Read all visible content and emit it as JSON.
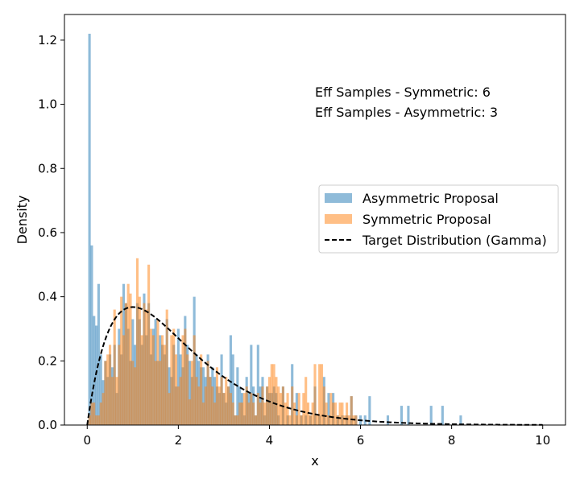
{
  "chart_data": {
    "type": "bar",
    "title": "",
    "xlabel": "x",
    "ylabel": "Density",
    "xlim": [
      -0.5,
      10.5
    ],
    "ylim": [
      0,
      1.28
    ],
    "xticks": [
      0,
      2,
      4,
      6,
      8,
      10
    ],
    "yticks": [
      0.0,
      0.2,
      0.4,
      0.6,
      0.8,
      1.0,
      1.2
    ],
    "grid": false,
    "legend_position": "center-right",
    "annotations": [
      "Eff Samples - Symmetric: 6",
      "Eff Samples - Asymmetric: 3"
    ],
    "bin_width": 0.055,
    "series": [
      {
        "name": "Asymmetric Proposal",
        "kind": "histogram",
        "color": "#1f77b4",
        "opacity": 0.5,
        "bins": [
          [
            0.05,
            1.22
          ],
          [
            0.1,
            0.56
          ],
          [
            0.15,
            0.34
          ],
          [
            0.2,
            0.31
          ],
          [
            0.25,
            0.44
          ],
          [
            0.3,
            0.22
          ],
          [
            0.35,
            0.14
          ],
          [
            0.4,
            0.2
          ],
          [
            0.45,
            0.15
          ],
          [
            0.5,
            0.22
          ],
          [
            0.55,
            0.18
          ],
          [
            0.6,
            0.25
          ],
          [
            0.65,
            0.1
          ],
          [
            0.7,
            0.3
          ],
          [
            0.75,
            0.22
          ],
          [
            0.8,
            0.44
          ],
          [
            0.85,
            0.38
          ],
          [
            0.9,
            0.3
          ],
          [
            0.95,
            0.2
          ],
          [
            1.0,
            0.33
          ],
          [
            1.05,
            0.25
          ],
          [
            1.1,
            0.38
          ],
          [
            1.15,
            0.33
          ],
          [
            1.2,
            0.25
          ],
          [
            1.25,
            0.41
          ],
          [
            1.3,
            0.28
          ],
          [
            1.35,
            0.38
          ],
          [
            1.4,
            0.22
          ],
          [
            1.45,
            0.3
          ],
          [
            1.5,
            0.33
          ],
          [
            1.55,
            0.2
          ],
          [
            1.6,
            0.28
          ],
          [
            1.65,
            0.25
          ],
          [
            1.7,
            0.22
          ],
          [
            1.75,
            0.33
          ],
          [
            1.8,
            0.18
          ],
          [
            1.85,
            0.15
          ],
          [
            1.9,
            0.25
          ],
          [
            1.95,
            0.12
          ],
          [
            2.0,
            0.3
          ],
          [
            2.05,
            0.22
          ],
          [
            2.1,
            0.18
          ],
          [
            2.15,
            0.34
          ],
          [
            2.2,
            0.25
          ],
          [
            2.25,
            0.2
          ],
          [
            2.3,
            0.15
          ],
          [
            2.35,
            0.4
          ],
          [
            2.4,
            0.22
          ],
          [
            2.45,
            0.2
          ],
          [
            2.5,
            0.18
          ],
          [
            2.55,
            0.18
          ],
          [
            2.6,
            0.15
          ],
          [
            2.65,
            0.22
          ],
          [
            2.7,
            0.15
          ],
          [
            2.75,
            0.18
          ],
          [
            2.8,
            0.15
          ],
          [
            2.85,
            0.12
          ],
          [
            2.9,
            0.1
          ],
          [
            2.95,
            0.22
          ],
          [
            3.0,
            0.1
          ],
          [
            3.05,
            0.07
          ],
          [
            3.1,
            0.12
          ],
          [
            3.15,
            0.28
          ],
          [
            3.2,
            0.22
          ],
          [
            3.25,
            0.03
          ],
          [
            3.3,
            0.18
          ],
          [
            3.35,
            0.12
          ],
          [
            3.4,
            0.1
          ],
          [
            3.45,
            0.03
          ],
          [
            3.5,
            0.15
          ],
          [
            3.55,
            0.1
          ],
          [
            3.6,
            0.25
          ],
          [
            3.65,
            0.12
          ],
          [
            3.7,
            0.03
          ],
          [
            3.75,
            0.25
          ],
          [
            3.8,
            0.12
          ],
          [
            3.85,
            0.15
          ],
          [
            3.9,
            0.03
          ],
          [
            3.95,
            0.12
          ],
          [
            4.0,
            0.1
          ],
          [
            4.05,
            0.1
          ],
          [
            4.1,
            0.12
          ],
          [
            4.15,
            0.1
          ],
          [
            4.2,
            0.03
          ],
          [
            4.3,
            0.12
          ],
          [
            4.4,
            0.03
          ],
          [
            4.5,
            0.19
          ],
          [
            4.6,
            0.1
          ],
          [
            4.7,
            0.03
          ],
          [
            4.8,
            0.03
          ],
          [
            4.9,
            0.03
          ],
          [
            5.0,
            0.12
          ],
          [
            5.1,
            0.03
          ],
          [
            5.2,
            0.15
          ],
          [
            5.3,
            0.1
          ],
          [
            5.4,
            0.1
          ],
          [
            5.5,
            0.03
          ],
          [
            5.6,
            0.03
          ],
          [
            5.7,
            0.03
          ],
          [
            5.8,
            0.09
          ],
          [
            5.9,
            0.03
          ],
          [
            6.0,
            0.03
          ],
          [
            6.1,
            0.03
          ],
          [
            6.2,
            0.09
          ],
          [
            6.6,
            0.03
          ],
          [
            6.9,
            0.06
          ],
          [
            7.05,
            0.06
          ],
          [
            7.55,
            0.06
          ],
          [
            7.8,
            0.06
          ],
          [
            8.2,
            0.03
          ]
        ]
      },
      {
        "name": "Symmetric Proposal",
        "kind": "histogram",
        "color": "#ff7f0e",
        "opacity": 0.5,
        "bins": [
          [
            0.05,
            0.03
          ],
          [
            0.1,
            0.07
          ],
          [
            0.15,
            0.07
          ],
          [
            0.2,
            0.03
          ],
          [
            0.25,
            0.03
          ],
          [
            0.3,
            0.07
          ],
          [
            0.35,
            0.1
          ],
          [
            0.4,
            0.2
          ],
          [
            0.45,
            0.22
          ],
          [
            0.5,
            0.25
          ],
          [
            0.55,
            0.15
          ],
          [
            0.6,
            0.36
          ],
          [
            0.65,
            0.15
          ],
          [
            0.7,
            0.25
          ],
          [
            0.75,
            0.4
          ],
          [
            0.8,
            0.28
          ],
          [
            0.85,
            0.38
          ],
          [
            0.9,
            0.44
          ],
          [
            0.95,
            0.41
          ],
          [
            1.0,
            0.2
          ],
          [
            1.05,
            0.18
          ],
          [
            1.1,
            0.52
          ],
          [
            1.15,
            0.4
          ],
          [
            1.2,
            0.28
          ],
          [
            1.25,
            0.38
          ],
          [
            1.3,
            0.36
          ],
          [
            1.35,
            0.5
          ],
          [
            1.4,
            0.3
          ],
          [
            1.45,
            0.28
          ],
          [
            1.5,
            0.2
          ],
          [
            1.55,
            0.33
          ],
          [
            1.6,
            0.2
          ],
          [
            1.65,
            0.28
          ],
          [
            1.7,
            0.25
          ],
          [
            1.75,
            0.36
          ],
          [
            1.8,
            0.1
          ],
          [
            1.85,
            0.28
          ],
          [
            1.9,
            0.3
          ],
          [
            1.95,
            0.22
          ],
          [
            2.0,
            0.12
          ],
          [
            2.05,
            0.15
          ],
          [
            2.1,
            0.28
          ],
          [
            2.15,
            0.3
          ],
          [
            2.2,
            0.22
          ],
          [
            2.25,
            0.08
          ],
          [
            2.3,
            0.2
          ],
          [
            2.35,
            0.28
          ],
          [
            2.4,
            0.15
          ],
          [
            2.45,
            0.12
          ],
          [
            2.5,
            0.22
          ],
          [
            2.55,
            0.07
          ],
          [
            2.6,
            0.12
          ],
          [
            2.65,
            0.2
          ],
          [
            2.7,
            0.15
          ],
          [
            2.75,
            0.12
          ],
          [
            2.8,
            0.07
          ],
          [
            2.85,
            0.18
          ],
          [
            2.9,
            0.12
          ],
          [
            2.95,
            0.15
          ],
          [
            3.0,
            0.1
          ],
          [
            3.05,
            0.15
          ],
          [
            3.1,
            0.12
          ],
          [
            3.15,
            0.1
          ],
          [
            3.2,
            0.07
          ],
          [
            3.25,
            0.03
          ],
          [
            3.3,
            0.03
          ],
          [
            3.35,
            0.07
          ],
          [
            3.4,
            0.07
          ],
          [
            3.45,
            0.1
          ],
          [
            3.5,
            0.12
          ],
          [
            3.55,
            0.07
          ],
          [
            3.6,
            0.1
          ],
          [
            3.65,
            0.07
          ],
          [
            3.7,
            0.03
          ],
          [
            3.75,
            0.1
          ],
          [
            3.8,
            0.07
          ],
          [
            3.85,
            0.12
          ],
          [
            3.9,
            0.07
          ],
          [
            3.95,
            0.12
          ],
          [
            4.0,
            0.15
          ],
          [
            4.05,
            0.19
          ],
          [
            4.1,
            0.19
          ],
          [
            4.15,
            0.15
          ],
          [
            4.2,
            0.12
          ],
          [
            4.25,
            0.1
          ],
          [
            4.3,
            0.12
          ],
          [
            4.35,
            0.07
          ],
          [
            4.4,
            0.1
          ],
          [
            4.45,
            0.03
          ],
          [
            4.5,
            0.12
          ],
          [
            4.55,
            0.07
          ],
          [
            4.6,
            0.03
          ],
          [
            4.65,
            0.1
          ],
          [
            4.7,
            0.03
          ],
          [
            4.75,
            0.1
          ],
          [
            4.8,
            0.15
          ],
          [
            4.85,
            0.07
          ],
          [
            4.9,
            0.03
          ],
          [
            4.95,
            0.07
          ],
          [
            5.0,
            0.19
          ],
          [
            5.05,
            0.03
          ],
          [
            5.1,
            0.19
          ],
          [
            5.15,
            0.19
          ],
          [
            5.2,
            0.12
          ],
          [
            5.25,
            0.07
          ],
          [
            5.3,
            0.03
          ],
          [
            5.35,
            0.1
          ],
          [
            5.4,
            0.07
          ],
          [
            5.45,
            0.07
          ],
          [
            5.5,
            0.03
          ],
          [
            5.55,
            0.07
          ],
          [
            5.6,
            0.07
          ],
          [
            5.65,
            0.03
          ],
          [
            5.7,
            0.07
          ],
          [
            5.75,
            0.03
          ],
          [
            5.8,
            0.09
          ],
          [
            5.85,
            0.03
          ],
          [
            5.9,
            0.03
          ]
        ]
      },
      {
        "name": "Target Distribution (Gamma)",
        "kind": "line",
        "style": "dashed",
        "color": "#000000",
        "shape": 2,
        "scale": 1,
        "x_range": [
          0,
          10
        ]
      }
    ]
  }
}
